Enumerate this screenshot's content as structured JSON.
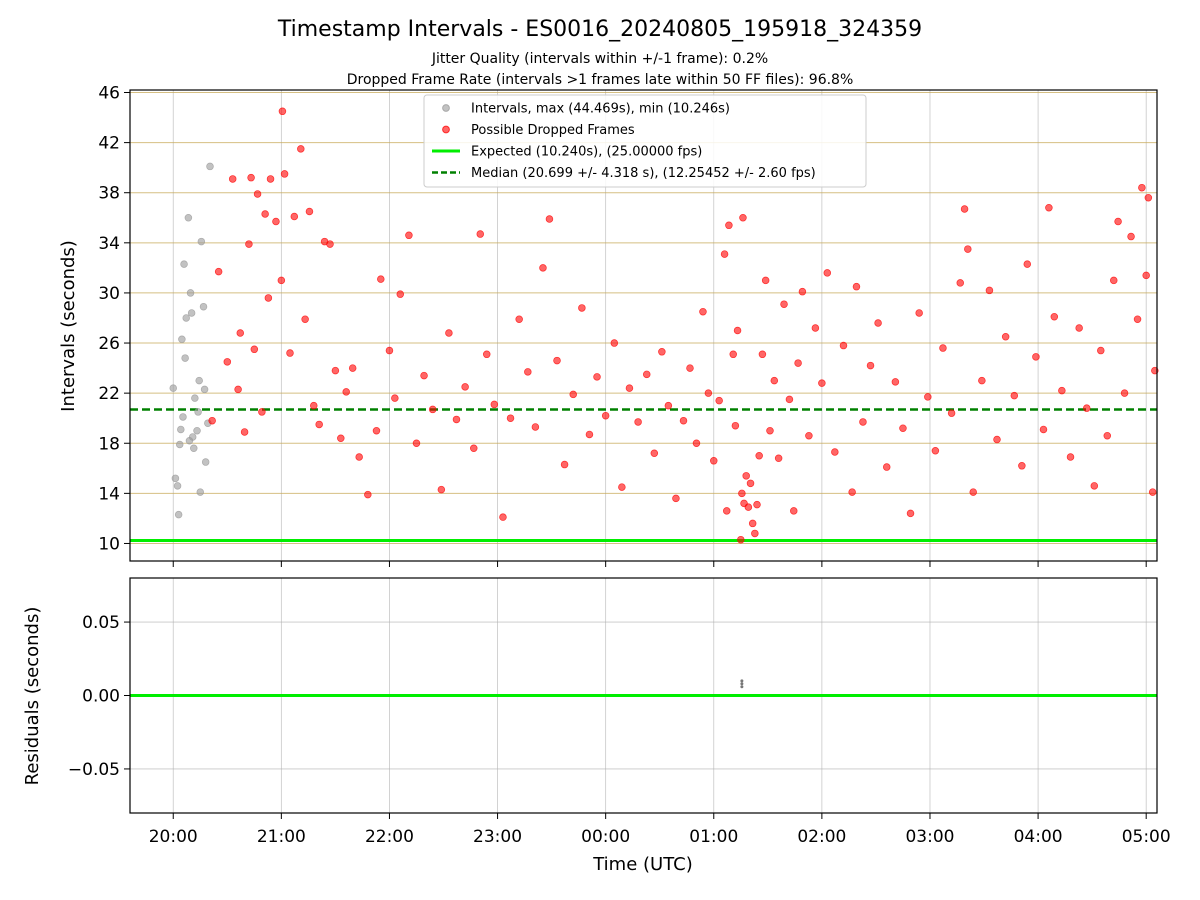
{
  "title": "Timestamp Intervals - ES0016_20240805_195918_324359",
  "subtitle_1": "Jitter Quality (intervals within +/-1 frame): 0.2%",
  "subtitle_2": "Dropped Frame Rate (intervals >1 frames late within 50 FF files): 96.8%",
  "chart_data": [
    {
      "type": "scatter",
      "panel": "intervals",
      "ylabel": "Intervals (seconds)",
      "xlabel": "",
      "x_unit": "hours since 20:00 UTC",
      "xlim": [
        -0.4,
        9.1
      ],
      "ylim": [
        8.6,
        46.2
      ],
      "yticks": [
        10,
        14,
        18,
        22,
        26,
        30,
        34,
        38,
        42,
        46
      ],
      "ytick_labels": [
        "10",
        "14",
        "18",
        "22",
        "26",
        "30",
        "34",
        "38",
        "42",
        "46"
      ],
      "grid": "horizontal lines at each y tick, vertical lines at each hour",
      "legend_position": "top-center",
      "series": [
        {
          "name": "Intervals, max (44.469s), min (10.246s)",
          "kind": "scatter",
          "color": "#9a9a9a",
          "points": [
            [
              0.0,
              22.4
            ],
            [
              0.02,
              15.2
            ],
            [
              0.04,
              14.6
            ],
            [
              0.06,
              17.9
            ],
            [
              0.08,
              26.3
            ],
            [
              0.1,
              32.3
            ],
            [
              0.12,
              28.0
            ],
            [
              0.14,
              36.0
            ],
            [
              0.16,
              30.0
            ],
            [
              0.18,
              18.5
            ],
            [
              0.2,
              21.6
            ],
            [
              0.22,
              19.0
            ],
            [
              0.24,
              23.0
            ],
            [
              0.26,
              34.1
            ],
            [
              0.28,
              28.9
            ],
            [
              0.3,
              16.5
            ],
            [
              0.32,
              19.6
            ],
            [
              0.34,
              40.1
            ],
            [
              0.05,
              12.3
            ],
            [
              0.07,
              19.1
            ],
            [
              0.11,
              24.8
            ],
            [
              0.15,
              18.2
            ],
            [
              0.19,
              17.6
            ],
            [
              0.25,
              14.1
            ],
            [
              0.29,
              22.3
            ],
            [
              0.17,
              28.4
            ],
            [
              0.23,
              20.5
            ],
            [
              0.09,
              20.1
            ]
          ]
        },
        {
          "name": "Possible Dropped Frames",
          "kind": "scatter",
          "color": "#ff0000",
          "points": [
            [
              0.36,
              19.8
            ],
            [
              0.42,
              31.7
            ],
            [
              0.5,
              24.5
            ],
            [
              0.55,
              39.1
            ],
            [
              0.6,
              22.3
            ],
            [
              0.62,
              26.8
            ],
            [
              0.66,
              18.9
            ],
            [
              0.7,
              33.9
            ],
            [
              0.72,
              39.2
            ],
            [
              0.75,
              25.5
            ],
            [
              0.78,
              37.9
            ],
            [
              0.82,
              20.5
            ],
            [
              0.85,
              36.3
            ],
            [
              0.88,
              29.6
            ],
            [
              0.9,
              39.1
            ],
            [
              0.95,
              35.7
            ],
            [
              1.0,
              31.0
            ],
            [
              1.01,
              44.5
            ],
            [
              1.03,
              39.5
            ],
            [
              1.08,
              25.2
            ],
            [
              1.12,
              36.1
            ],
            [
              1.18,
              41.5
            ],
            [
              1.22,
              27.9
            ],
            [
              1.26,
              36.5
            ],
            [
              1.3,
              21.0
            ],
            [
              1.35,
              19.5
            ],
            [
              1.4,
              34.1
            ],
            [
              1.45,
              33.9
            ],
            [
              1.5,
              23.8
            ],
            [
              1.55,
              18.4
            ],
            [
              1.6,
              22.1
            ],
            [
              1.66,
              24.0
            ],
            [
              1.72,
              16.9
            ],
            [
              1.8,
              13.9
            ],
            [
              1.88,
              19.0
            ],
            [
              1.92,
              31.1
            ],
            [
              2.0,
              25.4
            ],
            [
              2.05,
              21.6
            ],
            [
              2.1,
              29.9
            ],
            [
              2.18,
              34.6
            ],
            [
              2.25,
              18.0
            ],
            [
              2.32,
              23.4
            ],
            [
              2.4,
              20.7
            ],
            [
              2.48,
              14.3
            ],
            [
              2.55,
              26.8
            ],
            [
              2.62,
              19.9
            ],
            [
              2.7,
              22.5
            ],
            [
              2.78,
              17.6
            ],
            [
              2.84,
              34.7
            ],
            [
              2.9,
              25.1
            ],
            [
              2.97,
              21.1
            ],
            [
              3.05,
              12.1
            ],
            [
              3.12,
              20.0
            ],
            [
              3.2,
              27.9
            ],
            [
              3.28,
              23.7
            ],
            [
              3.35,
              19.3
            ],
            [
              3.42,
              32.0
            ],
            [
              3.48,
              35.9
            ],
            [
              3.55,
              24.6
            ],
            [
              3.62,
              16.3
            ],
            [
              3.7,
              21.9
            ],
            [
              3.78,
              28.8
            ],
            [
              3.85,
              18.7
            ],
            [
              3.92,
              23.3
            ],
            [
              4.0,
              20.2
            ],
            [
              4.08,
              26.0
            ],
            [
              4.15,
              14.5
            ],
            [
              4.22,
              22.4
            ],
            [
              4.3,
              19.7
            ],
            [
              4.38,
              23.5
            ],
            [
              4.45,
              17.2
            ],
            [
              4.52,
              25.3
            ],
            [
              4.58,
              21.0
            ],
            [
              4.65,
              13.6
            ],
            [
              4.72,
              19.8
            ],
            [
              4.78,
              24.0
            ],
            [
              4.84,
              18.0
            ],
            [
              4.9,
              28.5
            ],
            [
              4.95,
              22.0
            ],
            [
              5.0,
              16.6
            ],
            [
              5.05,
              21.4
            ],
            [
              5.1,
              33.1
            ],
            [
              5.12,
              12.6
            ],
            [
              5.14,
              35.4
            ],
            [
              5.18,
              25.1
            ],
            [
              5.2,
              19.4
            ],
            [
              5.22,
              27.0
            ],
            [
              5.25,
              10.3
            ],
            [
              5.26,
              14.0
            ],
            [
              5.27,
              36.0
            ],
            [
              5.28,
              13.2
            ],
            [
              5.3,
              15.4
            ],
            [
              5.32,
              12.9
            ],
            [
              5.34,
              14.8
            ],
            [
              5.36,
              11.6
            ],
            [
              5.38,
              10.8
            ],
            [
              5.4,
              13.1
            ],
            [
              5.42,
              17.0
            ],
            [
              5.45,
              25.1
            ],
            [
              5.48,
              31.0
            ],
            [
              5.52,
              19.0
            ],
            [
              5.56,
              23.0
            ],
            [
              5.6,
              16.8
            ],
            [
              5.65,
              29.1
            ],
            [
              5.7,
              21.5
            ],
            [
              5.74,
              12.6
            ],
            [
              5.78,
              24.4
            ],
            [
              5.82,
              30.1
            ],
            [
              5.88,
              18.6
            ],
            [
              5.94,
              27.2
            ],
            [
              6.0,
              22.8
            ],
            [
              6.05,
              31.6
            ],
            [
              6.12,
              17.3
            ],
            [
              6.2,
              25.8
            ],
            [
              6.28,
              14.1
            ],
            [
              6.32,
              30.5
            ],
            [
              6.38,
              19.7
            ],
            [
              6.45,
              24.2
            ],
            [
              6.52,
              27.6
            ],
            [
              6.6,
              16.1
            ],
            [
              6.68,
              22.9
            ],
            [
              6.75,
              19.2
            ],
            [
              6.82,
              12.4
            ],
            [
              6.9,
              28.4
            ],
            [
              6.98,
              21.7
            ],
            [
              7.05,
              17.4
            ],
            [
              7.12,
              25.6
            ],
            [
              7.2,
              20.4
            ],
            [
              7.28,
              30.8
            ],
            [
              7.32,
              36.7
            ],
            [
              7.35,
              33.5
            ],
            [
              7.4,
              14.1
            ],
            [
              7.48,
              23.0
            ],
            [
              7.55,
              30.2
            ],
            [
              7.62,
              18.3
            ],
            [
              7.7,
              26.5
            ],
            [
              7.78,
              21.8
            ],
            [
              7.85,
              16.2
            ],
            [
              7.9,
              32.3
            ],
            [
              7.98,
              24.9
            ],
            [
              8.05,
              19.1
            ],
            [
              8.1,
              36.8
            ],
            [
              8.15,
              28.1
            ],
            [
              8.22,
              22.2
            ],
            [
              8.3,
              16.9
            ],
            [
              8.38,
              27.2
            ],
            [
              8.45,
              20.8
            ],
            [
              8.52,
              14.6
            ],
            [
              8.58,
              25.4
            ],
            [
              8.64,
              18.6
            ],
            [
              8.7,
              31.0
            ],
            [
              8.74,
              35.7
            ],
            [
              8.8,
              22.0
            ],
            [
              8.86,
              34.5
            ],
            [
              8.92,
              27.9
            ],
            [
              8.96,
              38.4
            ],
            [
              9.0,
              31.4
            ],
            [
              9.02,
              37.6
            ],
            [
              9.06,
              14.1
            ],
            [
              9.08,
              23.8
            ]
          ]
        }
      ],
      "lines": [
        {
          "name": "Expected (10.240s), (25.00000 fps)",
          "color": "#00ee00",
          "style": "solid",
          "y": 10.24
        },
        {
          "name": "Median (20.699 +/- 4.318 s), (12.25452 +/- 2.60 fps)",
          "color": "#008000",
          "style": "dashed",
          "y": 20.699
        }
      ]
    },
    {
      "type": "scatter",
      "panel": "residuals",
      "ylabel": "Residuals (seconds)",
      "xlabel": "Time (UTC)",
      "xlim": [
        -0.4,
        9.1
      ],
      "ylim": [
        -0.08,
        0.08
      ],
      "yticks": [
        -0.05,
        0.0,
        0.05
      ],
      "ytick_labels": [
        "−0.05",
        "0.00",
        "0.05"
      ],
      "xticks": [
        0,
        1,
        2,
        3,
        4,
        5,
        6,
        7,
        8,
        9
      ],
      "xtick_labels": [
        "20:00",
        "21:00",
        "22:00",
        "23:00",
        "00:00",
        "01:00",
        "02:00",
        "03:00",
        "04:00",
        "05:00"
      ],
      "grid": true,
      "series": [
        {
          "kind": "scatter",
          "color": "#777777",
          "points": [
            [
              5.26,
              0.006
            ],
            [
              5.26,
              0.008
            ],
            [
              5.26,
              0.01
            ]
          ]
        }
      ],
      "lines": [
        {
          "color": "#00ee00",
          "style": "solid",
          "y": 0.0
        }
      ]
    }
  ]
}
